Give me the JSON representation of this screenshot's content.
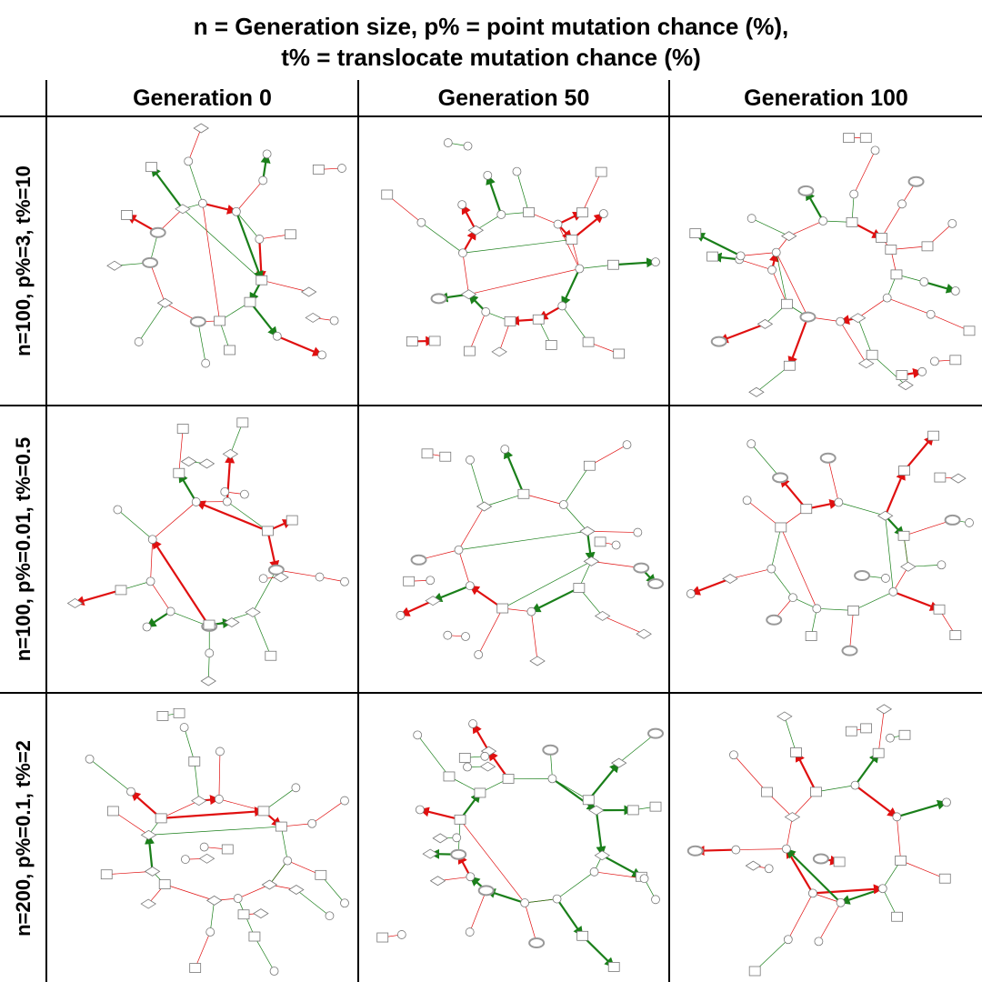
{
  "title": {
    "line1": "n = Generation size, p% = point mutation chance (%),",
    "line2": "t% = translocate mutation chance (%)"
  },
  "columns": [
    "Generation 0",
    "Generation 50",
    "Generation 100"
  ],
  "rows": [
    "n=100, p%=3, t%=10",
    "n=100, p%=0.01, t%=0.5",
    "n=200, p%=0.1, t%=2"
  ],
  "colors": {
    "activating_edge": "#1a7f1a",
    "inhibiting_edge": "#e01010",
    "node_stroke": "#777777",
    "grid": "#000000"
  }
}
